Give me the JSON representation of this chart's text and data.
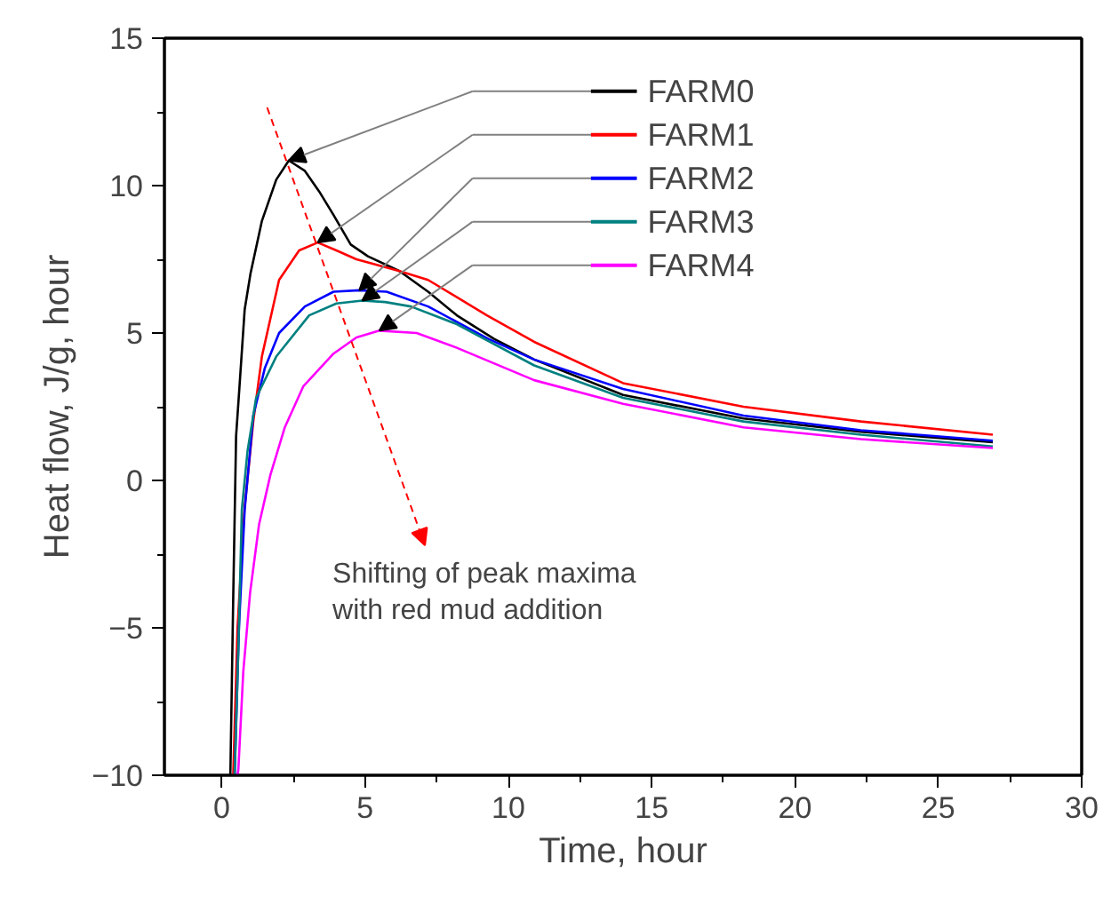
{
  "chart_data": {
    "type": "line",
    "xlabel": "Time, hour",
    "ylabel": "Heat flow, J/g, hour",
    "xlim": [
      -2,
      30
    ],
    "ylim": [
      -10,
      15
    ],
    "xticks": [
      0,
      5,
      10,
      15,
      20,
      25,
      30
    ],
    "yticks": [
      -10,
      -5,
      0,
      5,
      10,
      15
    ],
    "grid": false,
    "legend": "top right",
    "marker": "none",
    "line_style": "solid",
    "annotations": [
      "Shifting of peak maxima\nwith red mud addition"
    ],
    "series": [
      {
        "name": "FARM0",
        "color": "#000000",
        "x": [
          0.3,
          0.4,
          0.5,
          0.62,
          0.8,
          1.0,
          1.4,
          1.9,
          2.34,
          2.9,
          3.4,
          3.9,
          4.5,
          5.1,
          6.2,
          7.2,
          8.2,
          9.5,
          10.9,
          14.0,
          18.2,
          22.3,
          26.9
        ],
        "values": [
          -10,
          -4,
          1.5,
          3.2,
          5.8,
          7.0,
          8.8,
          10.2,
          10.85,
          10.5,
          9.8,
          9.0,
          8.0,
          7.6,
          7.1,
          6.4,
          5.6,
          4.8,
          4.1,
          2.9,
          2.1,
          1.65,
          1.3
        ]
      },
      {
        "name": "FARM1",
        "color": "#ff0000",
        "x": [
          0.4,
          0.55,
          0.79,
          1.1,
          1.4,
          2.0,
          2.7,
          3.35,
          4.0,
          4.7,
          6.2,
          7.2,
          9.25,
          10.9,
          14.0,
          18.2,
          22.3,
          26.9
        ],
        "values": [
          -10,
          -5,
          -1.0,
          2.0,
          4.2,
          6.8,
          7.8,
          8.07,
          7.8,
          7.5,
          7.1,
          6.8,
          5.6,
          4.7,
          3.3,
          2.5,
          2.0,
          1.55
        ]
      },
      {
        "name": "FARM2",
        "color": "#0000ff",
        "x": [
          0.45,
          0.6,
          0.8,
          1.1,
          1.5,
          2.0,
          2.9,
          3.9,
          4.8,
          5.75,
          7.2,
          9.3,
          10.9,
          14.0,
          18.2,
          22.3,
          26.9
        ],
        "values": [
          -10,
          -5,
          -1.0,
          2.2,
          3.8,
          5.0,
          5.9,
          6.4,
          6.45,
          6.4,
          5.9,
          4.8,
          4.1,
          3.1,
          2.2,
          1.7,
          1.35
        ]
      },
      {
        "name": "FARM3",
        "color": "#008080",
        "x": [
          0.45,
          0.6,
          0.7,
          0.9,
          1.2,
          1.9,
          3.05,
          4.0,
          4.9,
          5.7,
          6.6,
          8.2,
          10.9,
          14.0,
          18.2,
          22.3,
          26.9
        ],
        "values": [
          -10,
          -5,
          -1.0,
          1.0,
          2.8,
          4.2,
          5.6,
          6.0,
          6.1,
          6.05,
          5.9,
          5.3,
          3.9,
          2.8,
          2.0,
          1.55,
          1.15
        ]
      },
      {
        "name": "FARM4",
        "color": "#ff00ff",
        "x": [
          0.55,
          0.58,
          0.75,
          0.99,
          1.3,
          1.7,
          2.2,
          2.85,
          3.9,
          4.7,
          5.5,
          6.8,
          8.2,
          10.9,
          14.0,
          18.2,
          22.3,
          26.9
        ],
        "values": [
          -10,
          -9.8,
          -6.5,
          -3.8,
          -1.5,
          0.2,
          1.8,
          3.2,
          4.3,
          4.85,
          5.08,
          5.0,
          4.5,
          3.4,
          2.6,
          1.8,
          1.4,
          1.1
        ]
      }
    ]
  }
}
